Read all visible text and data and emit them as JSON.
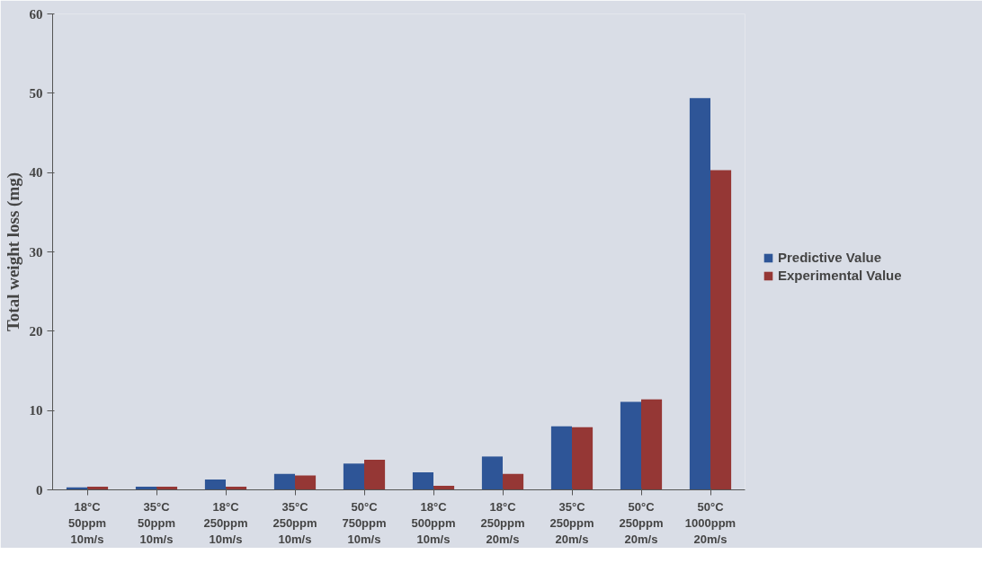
{
  "chart_data": {
    "type": "bar",
    "ylabel": "Total weight loss (mg)",
    "categories": [
      "18°C\n50ppm\n10m/s",
      "35°C\n50ppm\n10m/s",
      "18°C\n250ppm\n10m/s",
      "35°C\n250ppm\n10m/s",
      "50°C\n750ppm\n10m/s",
      "18°C\n500ppm\n10m/s",
      "18°C\n250ppm\n20m/s",
      "35°C\n250ppm\n20m/s",
      "50°C\n250ppm\n20m/s",
      "50°C\n1000ppm\n20m/s"
    ],
    "series": [
      {
        "name": "Predictive Value",
        "color": "#2e5597",
        "values": [
          0.3,
          0.4,
          1.3,
          2.0,
          3.3,
          2.2,
          4.2,
          8.0,
          11.1,
          49.4
        ]
      },
      {
        "name": "Experimental Value",
        "color": "#953735",
        "values": [
          0.4,
          0.4,
          0.4,
          1.8,
          3.8,
          0.5,
          2.0,
          7.9,
          11.4,
          40.3
        ]
      }
    ],
    "ylim": [
      0,
      60
    ],
    "yticks": [
      0,
      10,
      20,
      30,
      40,
      50,
      60
    ],
    "grid": false,
    "legend": "right"
  }
}
